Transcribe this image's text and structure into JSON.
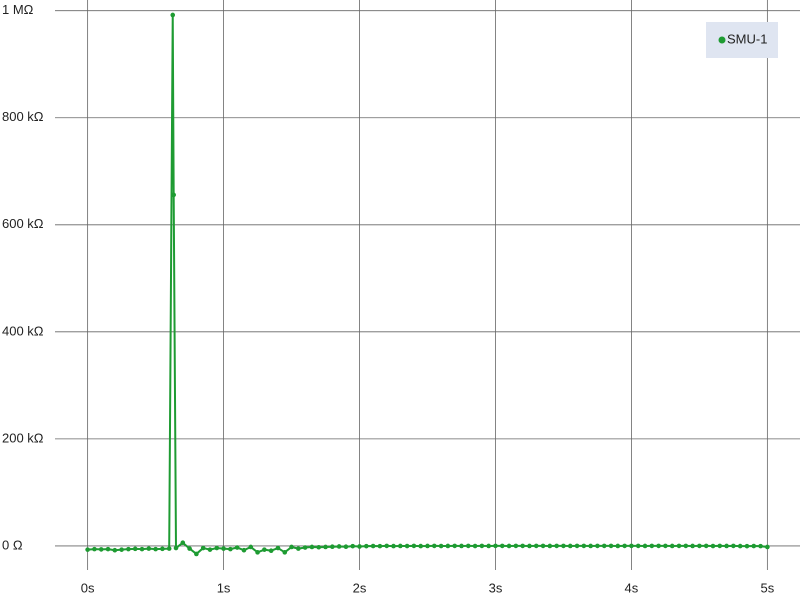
{
  "chart_data": {
    "type": "line",
    "xlim": [
      -0.24,
      5.24
    ],
    "ylim": [
      -45000,
      1020000
    ],
    "xticks": [
      {
        "value": 0,
        "label": "0s"
      },
      {
        "value": 1,
        "label": "1s"
      },
      {
        "value": 2,
        "label": "2s"
      },
      {
        "value": 3,
        "label": "3s"
      },
      {
        "value": 4,
        "label": "4s"
      },
      {
        "value": 5,
        "label": "5s"
      }
    ],
    "yticks": [
      {
        "value": 0,
        "label": "0 Ω"
      },
      {
        "value": 200000,
        "label": "200 kΩ"
      },
      {
        "value": 400000,
        "label": "400 kΩ"
      },
      {
        "value": 600000,
        "label": "600 kΩ"
      },
      {
        "value": 800000,
        "label": "800 kΩ"
      },
      {
        "value": 1000000,
        "label": "1 MΩ"
      }
    ],
    "grid": true,
    "legend": "upper right",
    "x": [
      0,
      0.05,
      0.1,
      0.15,
      0.2,
      0.25,
      0.3,
      0.35,
      0.4,
      0.45,
      0.5,
      0.55,
      0.6,
      0.626,
      0.633,
      0.65,
      0.7,
      0.75,
      0.8,
      0.85,
      0.9,
      0.95,
      1,
      1.05,
      1.1,
      1.15,
      1.2,
      1.25,
      1.3,
      1.35,
      1.4,
      1.45,
      1.5,
      1.55,
      1.6,
      1.65,
      1.7,
      1.75,
      1.8,
      1.85,
      1.9,
      1.95,
      2,
      2.05,
      2.1,
      2.15,
      2.2,
      2.25,
      2.3,
      2.35,
      2.4,
      2.45,
      2.5,
      2.55,
      2.6,
      2.65,
      2.7,
      2.75,
      2.8,
      2.85,
      2.9,
      2.95,
      3,
      3.05,
      3.1,
      3.15,
      3.2,
      3.25,
      3.3,
      3.35,
      3.4,
      3.45,
      3.5,
      3.55,
      3.6,
      3.65,
      3.7,
      3.75,
      3.8,
      3.85,
      3.9,
      3.95,
      4,
      4.05,
      4.1,
      4.15,
      4.2,
      4.25,
      4.3,
      4.35,
      4.4,
      4.45,
      4.5,
      4.55,
      4.6,
      4.65,
      4.7,
      4.75,
      4.8,
      4.85,
      4.9,
      4.95,
      5
    ],
    "series": [
      {
        "name": "SMU-1",
        "color": "#1e9b32",
        "values": [
          -7000,
          -6000,
          -6500,
          -6000,
          -8000,
          -7000,
          -6000,
          -5500,
          -6000,
          -5000,
          -6000,
          -5500,
          -5000,
          992000,
          656000,
          -4000,
          6000,
          -5000,
          -15000,
          -4000,
          -7000,
          -4000,
          -5000,
          -6000,
          -3000,
          -8000,
          -2000,
          -12000,
          -7000,
          -9000,
          -4000,
          -12000,
          -2000,
          -5000,
          -3000,
          -2000,
          -2500,
          -2000,
          -1500,
          -1000,
          -1500,
          -500,
          -1000,
          -500,
          -200,
          -400,
          0,
          -300,
          -100,
          -200,
          0,
          -300,
          -100,
          0,
          -200,
          -100,
          0,
          -100,
          0,
          -200,
          0,
          -100,
          0,
          0,
          -100,
          0,
          0,
          -100,
          0,
          0,
          -100,
          0,
          0,
          -100,
          0,
          0,
          -100,
          0,
          0,
          0,
          -100,
          0,
          0,
          0,
          -100,
          0,
          0,
          0,
          -100,
          0,
          0,
          -100,
          0,
          0,
          -200,
          0,
          -100,
          0,
          -300,
          -500,
          -200,
          -400,
          -2000
        ]
      }
    ]
  }
}
